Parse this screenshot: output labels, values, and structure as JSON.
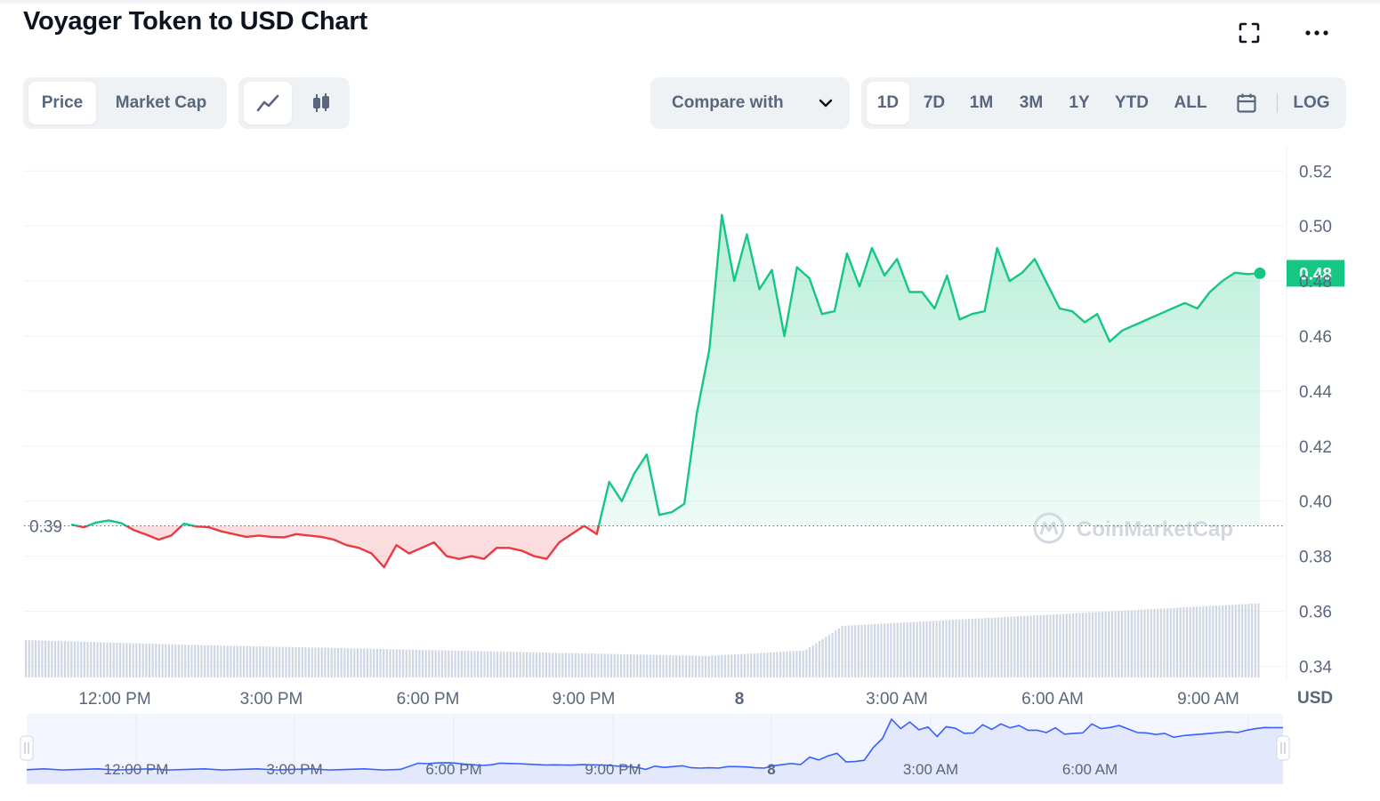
{
  "header": {
    "title": "Voyager Token to USD Chart"
  },
  "toolbar": {
    "price_label": "Price",
    "market_cap_label": "Market Cap",
    "compare_label": "Compare with",
    "ranges": [
      "1D",
      "7D",
      "1M",
      "3M",
      "1Y",
      "YTD",
      "ALL"
    ],
    "active_range": "1D",
    "log_label": "LOG"
  },
  "colors": {
    "up": "#16c784",
    "down": "#ea3943",
    "volume": "#cfd6e4",
    "navigator_fill": "#e8ebfd",
    "navigator_line": "#3861fb"
  },
  "watermark": "CoinMarketCap",
  "chart_data": {
    "type": "line",
    "title": "Voyager Token to USD Chart",
    "xlabel": "",
    "ylabel": "USD",
    "x_ticks": [
      "12:00 PM",
      "3:00 PM",
      "6:00 PM",
      "9:00 PM",
      "8",
      "3:00 AM",
      "6:00 AM",
      "9:00 AM"
    ],
    "y_ticks": [
      0.52,
      0.5,
      0.48,
      0.46,
      0.44,
      0.42,
      0.4,
      0.38,
      0.36,
      0.34
    ],
    "ylim": [
      0.33,
      0.523
    ],
    "reference_price": 0.391,
    "reference_label": "0.39",
    "current_price": 0.4828,
    "current_label": "0.48",
    "grid": true,
    "x": [
      "10:15",
      "10:30",
      "10:45",
      "11:00",
      "11:15",
      "11:30",
      "11:45",
      "12:00",
      "12:15",
      "12:30",
      "12:45",
      "13:00",
      "13:15",
      "13:30",
      "13:45",
      "14:00",
      "14:15",
      "14:30",
      "14:45",
      "15:00",
      "15:15",
      "15:30",
      "15:45",
      "16:00",
      "16:15",
      "16:30",
      "16:45",
      "17:00",
      "17:15",
      "17:30",
      "17:45",
      "18:00",
      "18:15",
      "18:30",
      "18:45",
      "19:00",
      "19:15",
      "19:30",
      "19:45",
      "20:00",
      "20:15",
      "20:30",
      "20:45",
      "21:00",
      "21:15",
      "21:30",
      "21:45",
      "22:00",
      "22:15",
      "22:30",
      "22:45",
      "23:00",
      "23:15",
      "23:30",
      "23:45",
      "00:00",
      "00:15",
      "00:30",
      "00:45",
      "01:00",
      "01:15",
      "01:30",
      "01:45",
      "02:00",
      "02:15",
      "02:30",
      "02:45",
      "03:00",
      "03:15",
      "03:30",
      "03:45",
      "04:00",
      "04:15",
      "04:30",
      "04:45",
      "05:00",
      "05:15",
      "05:30",
      "05:45",
      "06:00",
      "06:15",
      "06:30",
      "06:45",
      "07:00",
      "07:15",
      "07:30",
      "07:45",
      "08:00",
      "08:15",
      "08:30",
      "08:45",
      "09:00",
      "09:15",
      "09:30",
      "09:45",
      "10:00"
    ],
    "price": [
      0.3915,
      0.3905,
      0.3922,
      0.393,
      0.392,
      0.3895,
      0.3878,
      0.386,
      0.3875,
      0.3918,
      0.3908,
      0.3905,
      0.389,
      0.388,
      0.387,
      0.3875,
      0.387,
      0.3868,
      0.388,
      0.3875,
      0.387,
      0.386,
      0.384,
      0.383,
      0.381,
      0.376,
      0.384,
      0.381,
      0.383,
      0.385,
      0.38,
      0.379,
      0.38,
      0.379,
      0.383,
      0.383,
      0.382,
      0.38,
      0.379,
      0.385,
      0.388,
      0.391,
      0.388,
      0.407,
      0.4,
      0.41,
      0.417,
      0.395,
      0.396,
      0.399,
      0.432,
      0.455,
      0.504,
      0.48,
      0.497,
      0.477,
      0.484,
      0.46,
      0.485,
      0.481,
      0.468,
      0.469,
      0.49,
      0.478,
      0.492,
      0.482,
      0.488,
      0.476,
      0.476,
      0.47,
      0.482,
      0.466,
      0.468,
      0.469,
      0.492,
      0.48,
      0.483,
      0.488,
      0.479,
      0.47,
      0.469,
      0.465,
      0.468,
      0.458,
      0.462,
      0.464,
      0.466,
      0.468,
      0.47,
      0.472,
      0.47,
      0.476,
      0.48,
      0.483,
      0.4825,
      0.4828
    ],
    "volume_trend": "rising",
    "navigator": {
      "x_ticks": [
        "12:00 PM",
        "3:00 PM",
        "6:00 PM",
        "9:00 PM",
        "8",
        "3:00 AM",
        "6:00 AM"
      ]
    }
  }
}
